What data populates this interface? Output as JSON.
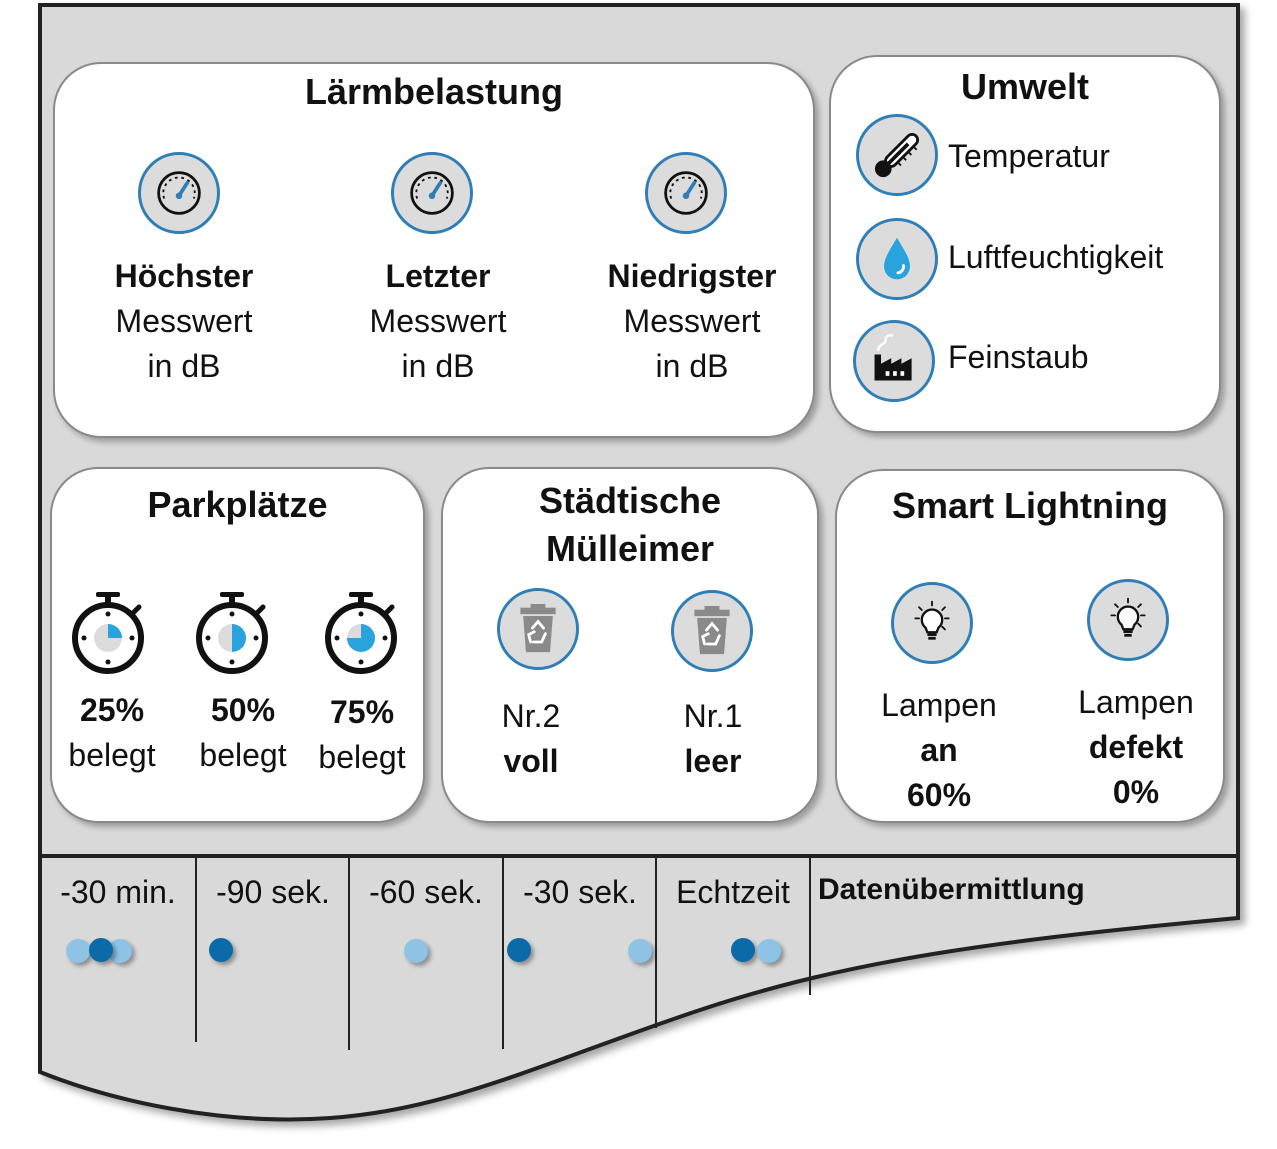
{
  "colors": {
    "panel_bg": "#d9d9d9",
    "accent_blue": "#2f7fb6",
    "light_blue": "#29a3dd",
    "dot_dark": "#0b6aa8",
    "dot_light": "#8fc3e6"
  },
  "noise": {
    "title": "Lärmbelastung",
    "items": [
      {
        "bold": "Höchster",
        "line2": "Messwert",
        "line3": "in dB",
        "icon": "gauge-icon"
      },
      {
        "bold": "Letzter",
        "line2": "Messwert",
        "line3": "in dB",
        "icon": "gauge-icon"
      },
      {
        "bold": "Niedrigster",
        "line2": "Messwert",
        "line3": "in dB",
        "icon": "gauge-icon"
      }
    ]
  },
  "environment": {
    "title": "Umwelt",
    "items": [
      {
        "label": "Temperatur",
        "icon": "thermometer-icon"
      },
      {
        "label": "Luftfeuchtigkeit",
        "icon": "water-drop-icon"
      },
      {
        "label": "Feinstaub",
        "icon": "factory-icon"
      }
    ]
  },
  "parking": {
    "title": "Parkplätze",
    "items": [
      {
        "percent": "25%",
        "label": "belegt",
        "fill": 0.25,
        "icon": "stopwatch-icon"
      },
      {
        "percent": "50%",
        "label": "belegt",
        "fill": 0.5,
        "icon": "stopwatch-icon"
      },
      {
        "percent": "75%",
        "label": "belegt",
        "fill": 0.75,
        "icon": "stopwatch-icon"
      }
    ]
  },
  "bins": {
    "title_line1": "Städtische",
    "title_line2": "Mülleimer",
    "items": [
      {
        "number": "Nr.2",
        "status": "voll",
        "icon": "recycle-bin-icon"
      },
      {
        "number": "Nr.1",
        "status": "leer",
        "icon": "recycle-bin-icon"
      }
    ]
  },
  "lighting": {
    "title": "Smart Lightning",
    "items": [
      {
        "line1": "Lampen",
        "line2": "an",
        "line3": "60%",
        "icon": "lightbulb-icon"
      },
      {
        "line1": "Lampen",
        "line2": "defekt",
        "line3": "0%",
        "icon": "lightbulb-icon"
      }
    ]
  },
  "transmission": {
    "title": "Datenübermittlung",
    "columns": [
      "-30 min.",
      "-90 sek.",
      "-60 sek.",
      "-30 sek.",
      "Echtzeit"
    ]
  }
}
